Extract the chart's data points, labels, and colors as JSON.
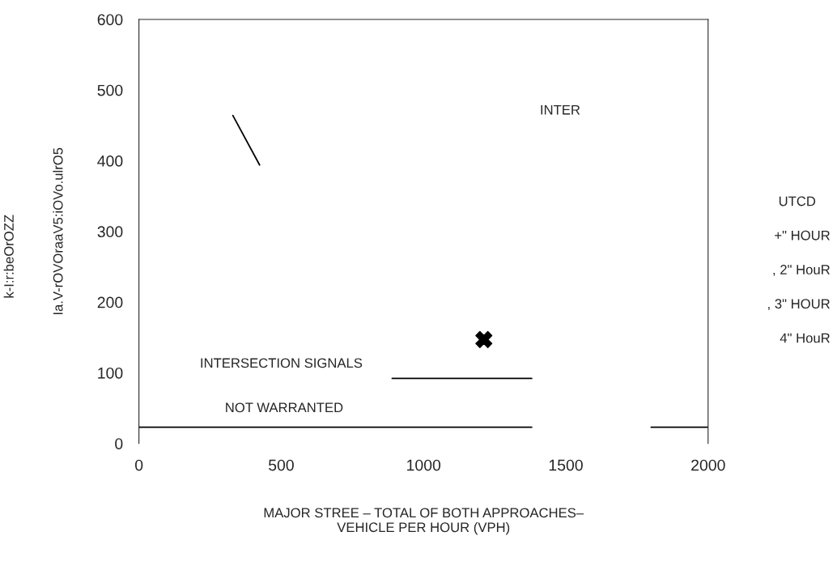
{
  "chart_data": {
    "type": "line",
    "xlabel": "MAJOR STREE – TOTAL OF BOTH APPROACHES–\nVEHICLE PER HOUR (VPH)",
    "ylabel": "Ia.V-rOVOraaV5:iOVo.ulrO5",
    "xlim": [
      0,
      2000
    ],
    "xticks": [
      0,
      500,
      1000,
      1500,
      2000
    ],
    "ylim": [
      0,
      600
    ],
    "yticks": [
      0,
      100,
      200,
      300,
      400,
      500,
      600
    ],
    "grid": false,
    "legend": false,
    "series": [
      {
        "color": "#000000",
        "x": [
          330,
          424
        ],
        "values": [
          464,
          394
        ]
      },
      {
        "color": "#000000",
        "x": [
          890,
          1380
        ],
        "values": [
          92,
          92
        ]
      },
      {
        "color": "#000000",
        "x": [
          0,
          1380
        ],
        "values": [
          23,
          23
        ]
      },
      {
        "color": "#000000",
        "x": [
          1800,
          2000
        ],
        "values": [
          23,
          23
        ]
      },
      {
        "type": "scatter",
        "color": "#000000",
        "marker": "cross",
        "x": [
          1212
        ],
        "values": [
          147
        ]
      }
    ],
    "annotations": [
      "INTER",
      "INTERSECTION SIGNALS",
      "NOT WARRANTED",
      "k-I:r:beOrOZZ",
      "UTCD",
      "+\" HOUR",
      ", 2\" HouR",
      ", 3\" HOUR",
      "4\" HouR"
    ]
  }
}
